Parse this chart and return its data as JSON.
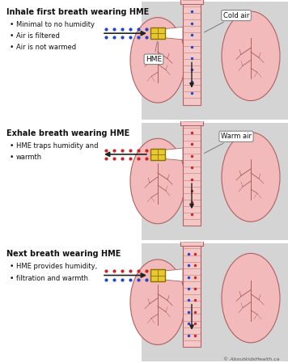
{
  "bg_color": "#d4d4d4",
  "panel_bg": "#ffffff",
  "lung_fill": "#f2baba",
  "lung_stroke": "#b06060",
  "trachea_fill": "#f5c8c8",
  "trachea_stroke": "#b06060",
  "stripe_color": "#c07070",
  "hme_fill": "#e8c830",
  "hme_stroke": "#8a7000",
  "hme_inner": "#c09820",
  "arrow_color": "#222222",
  "blue_dot_color": "#2244cc",
  "red_dot_color": "#cc2222",
  "callout_bg": "#ffffff",
  "callout_stroke": "#666666",
  "text_color": "#111111",
  "copyright": "© AboutkidsHealth.ca",
  "panels": [
    {
      "title": "Inhale first breath wearing HME",
      "bullets": [
        "Minimal to no humidity",
        "Air is filtered",
        "Air is not warmed"
      ],
      "callout_label": "Cold air",
      "show_hme_label": true,
      "arrow_dir": "right",
      "dot_in_trachea": "blue",
      "flow_dots": "blue"
    },
    {
      "title": "Exhale breath wearing HME",
      "bullets": [
        "HME traps humidity and",
        "warmth"
      ],
      "callout_label": "Warm air",
      "show_hme_label": false,
      "arrow_dir": "left",
      "dot_in_trachea": "red",
      "flow_dots": "red"
    },
    {
      "title": "Next breath wearing HME",
      "bullets": [
        "HME provides humidity,",
        "filtration and warmth"
      ],
      "callout_label": "",
      "show_hme_label": false,
      "arrow_dir": "right",
      "dot_in_trachea": "both",
      "flow_dots": "both"
    }
  ]
}
